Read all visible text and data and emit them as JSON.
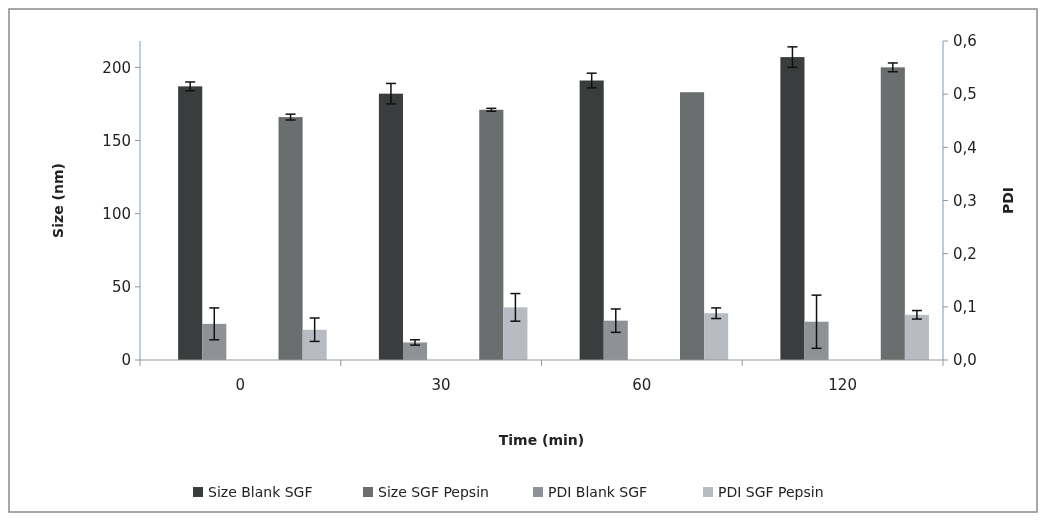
{
  "chart_data": {
    "type": "bar",
    "xlabel": "Time (min)",
    "ylabel": "Size (nm)",
    "y2label": "PDI",
    "categories": [
      "0",
      "30",
      "60",
      "120"
    ],
    "series": [
      {
        "name": "Size Blank SGF",
        "color": "#3a3d3d",
        "values": [
          187,
          182,
          191,
          207
        ],
        "errors": [
          3,
          7,
          5,
          7
        ]
      },
      {
        "name": "Size SGF Pepsin",
        "color": "#6b6e6e",
        "values": [
          166,
          171,
          183,
          200
        ],
        "errors": [
          2,
          1,
          null,
          3
        ]
      },
      {
        "name": "PDI Blank SGF",
        "color": "#8e9196",
        "axis": "y2",
        "values": [
          0.068,
          0.033,
          0.074,
          0.072
        ],
        "errors": [
          0.03,
          0.005,
          0.022,
          0.05
        ]
      },
      {
        "name": "PDI SGF Pepsin",
        "color": "#b8bcc2",
        "axis": "y2",
        "values": [
          0.057,
          0.099,
          0.088,
          0.085
        ],
        "errors": [
          0.022,
          0.026,
          0.01,
          0.008
        ]
      }
    ],
    "ylim": [
      0,
      218
    ],
    "yticks": [
      0,
      50,
      100,
      150,
      200
    ],
    "y2lim": [
      0,
      0.6
    ],
    "y2ticks": [
      {
        "value": 0,
        "label": "0,0"
      },
      {
        "value": 0.1,
        "label": "0,1"
      },
      {
        "value": 0.2,
        "label": "0,2"
      },
      {
        "value": 0.3,
        "label": "0,3"
      },
      {
        "value": 0.4,
        "label": "0,4"
      },
      {
        "value": 0.5,
        "label": "0,5"
      },
      {
        "value": 0.6,
        "label": "0,6"
      }
    ],
    "grid": false,
    "legend": "bottom"
  }
}
